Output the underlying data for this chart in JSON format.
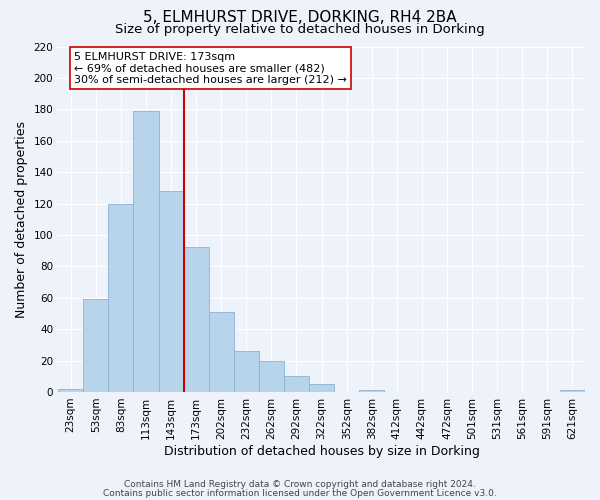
{
  "title": "5, ELMHURST DRIVE, DORKING, RH4 2BA",
  "subtitle": "Size of property relative to detached houses in Dorking",
  "xlabel": "Distribution of detached houses by size in Dorking",
  "ylabel": "Number of detached properties",
  "bin_labels": [
    "23sqm",
    "53sqm",
    "83sqm",
    "113sqm",
    "143sqm",
    "173sqm",
    "202sqm",
    "232sqm",
    "262sqm",
    "292sqm",
    "322sqm",
    "352sqm",
    "382sqm",
    "412sqm",
    "442sqm",
    "472sqm",
    "501sqm",
    "531sqm",
    "561sqm",
    "591sqm",
    "621sqm"
  ],
  "bar_values": [
    2,
    59,
    120,
    179,
    128,
    92,
    51,
    26,
    20,
    10,
    5,
    0,
    1,
    0,
    0,
    0,
    0,
    0,
    0,
    0,
    1
  ],
  "bar_color": "#b8d4ea",
  "bar_edge_color": "#8ab4d4",
  "vline_color": "#cc0000",
  "vline_x": 4.5,
  "ylim": [
    0,
    220
  ],
  "yticks": [
    0,
    20,
    40,
    60,
    80,
    100,
    120,
    140,
    160,
    180,
    200,
    220
  ],
  "annotation_text": "5 ELMHURST DRIVE: 173sqm\n← 69% of detached houses are smaller (482)\n30% of semi-detached houses are larger (212) →",
  "annotation_box_color": "#ffffff",
  "annotation_box_edge": "#cc0000",
  "footer_line1": "Contains HM Land Registry data © Crown copyright and database right 2024.",
  "footer_line2": "Contains public sector information licensed under the Open Government Licence v3.0.",
  "background_color": "#eef2fa",
  "grid_color": "#ffffff",
  "title_fontsize": 11,
  "subtitle_fontsize": 9.5,
  "axis_label_fontsize": 9,
  "tick_fontsize": 7.5,
  "annotation_fontsize": 8,
  "footer_fontsize": 6.5
}
